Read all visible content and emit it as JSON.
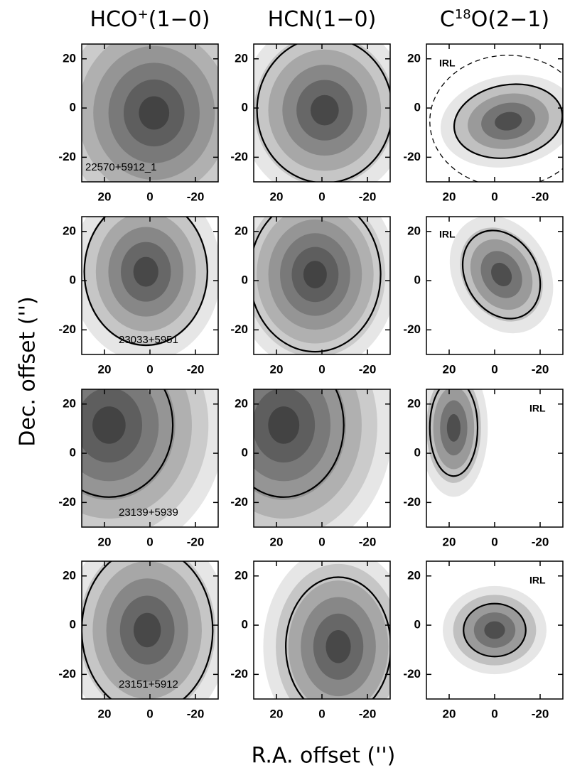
{
  "figure": {
    "column_titles": [
      [
        "HCO",
        "+",
        "(1−0)"
      ],
      [
        "HCN(1−0)"
      ],
      [
        "C",
        "18",
        "O(2−1)"
      ]
    ],
    "xlabel": "R.A. offset ('')",
    "ylabel": "Dec. offset ('')"
  },
  "chart_data": [
    {
      "type": "contour",
      "xlim": [
        30,
        -30
      ],
      "ylim": [
        -30,
        26
      ],
      "xticks": [
        20,
        0,
        -20
      ],
      "yticks": [
        -20,
        0,
        20
      ],
      "annotation": "22570+5912_1"
    },
    {
      "type": "contour",
      "xlim": [
        30,
        -30
      ],
      "ylim": [
        -30,
        26
      ],
      "xticks": [
        20,
        0,
        -20
      ],
      "yticks": [
        -20,
        0,
        20
      ]
    },
    {
      "type": "contour",
      "xlim": [
        30,
        -30
      ],
      "ylim": [
        -30,
        26
      ],
      "xticks": [
        20,
        0,
        -20
      ],
      "yticks": [
        -20,
        0,
        20
      ],
      "annotation": "IRL"
    },
    {
      "type": "contour",
      "xlim": [
        30,
        -30
      ],
      "ylim": [
        -30,
        26
      ],
      "xticks": [
        20,
        0,
        -20
      ],
      "yticks": [
        -20,
        0,
        20
      ],
      "annotation": "23033+5951"
    },
    {
      "type": "contour",
      "xlim": [
        30,
        -30
      ],
      "ylim": [
        -30,
        26
      ],
      "xticks": [
        20,
        0,
        -20
      ],
      "yticks": [
        -20,
        0,
        20
      ]
    },
    {
      "type": "contour",
      "xlim": [
        30,
        -30
      ],
      "ylim": [
        -30,
        26
      ],
      "xticks": [
        20,
        0,
        -20
      ],
      "yticks": [
        -20,
        0,
        20
      ],
      "annotation": "IRL"
    },
    {
      "type": "contour",
      "xlim": [
        30,
        -30
      ],
      "ylim": [
        -30,
        26
      ],
      "xticks": [
        20,
        0,
        -20
      ],
      "yticks": [
        -20,
        0,
        20
      ],
      "annotation": "23139+5939"
    },
    {
      "type": "contour",
      "xlim": [
        30,
        -30
      ],
      "ylim": [
        -30,
        26
      ],
      "xticks": [
        20,
        0,
        -20
      ],
      "yticks": [
        -20,
        0,
        20
      ]
    },
    {
      "type": "contour",
      "xlim": [
        30,
        -30
      ],
      "ylim": [
        -30,
        26
      ],
      "xticks": [
        20,
        0,
        -20
      ],
      "yticks": [
        -20,
        0,
        20
      ],
      "annotation": "IRL"
    },
    {
      "type": "contour",
      "xlim": [
        30,
        -30
      ],
      "ylim": [
        -30,
        26
      ],
      "xticks": [
        20,
        0,
        -20
      ],
      "yticks": [
        -20,
        0,
        20
      ],
      "annotation": "23151+5912"
    },
    {
      "type": "contour",
      "xlim": [
        30,
        -30
      ],
      "ylim": [
        -30,
        26
      ],
      "xticks": [
        20,
        0,
        -20
      ],
      "yticks": [
        -20,
        0,
        20
      ]
    },
    {
      "type": "contour",
      "xlim": [
        30,
        -30
      ],
      "ylim": [
        -30,
        26
      ],
      "xticks": [
        20,
        0,
        -20
      ],
      "yticks": [
        -20,
        0,
        20
      ],
      "annotation": "IRL"
    }
  ]
}
